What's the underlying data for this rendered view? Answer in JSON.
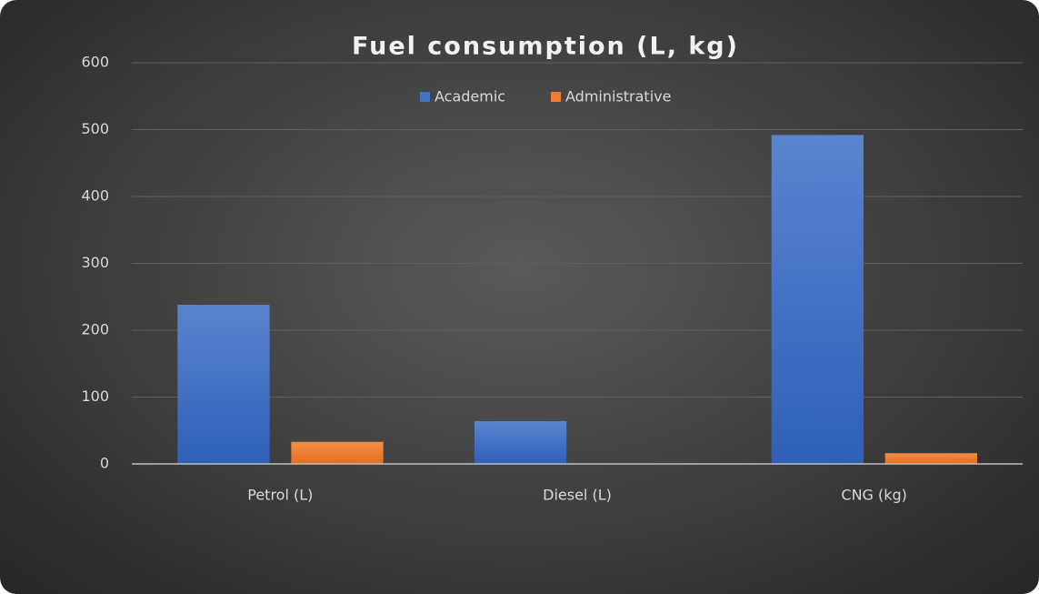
{
  "chart_data": {
    "type": "bar",
    "title": "Fuel consumption (L, kg)",
    "categories": [
      "Petrol (L)",
      "Diesel (L)",
      "CNG (kg)"
    ],
    "series": [
      {
        "name": "Academic",
        "color": "#4472c4",
        "values": [
          238,
          64,
          492
        ]
      },
      {
        "name": "Administrative",
        "color": "#ed7d31",
        "values": [
          33,
          0,
          16
        ]
      }
    ],
    "ylim": [
      0,
      600
    ],
    "yticks": [
      0,
      100,
      200,
      300,
      400,
      500,
      600
    ],
    "grid": true,
    "legend": "top"
  }
}
